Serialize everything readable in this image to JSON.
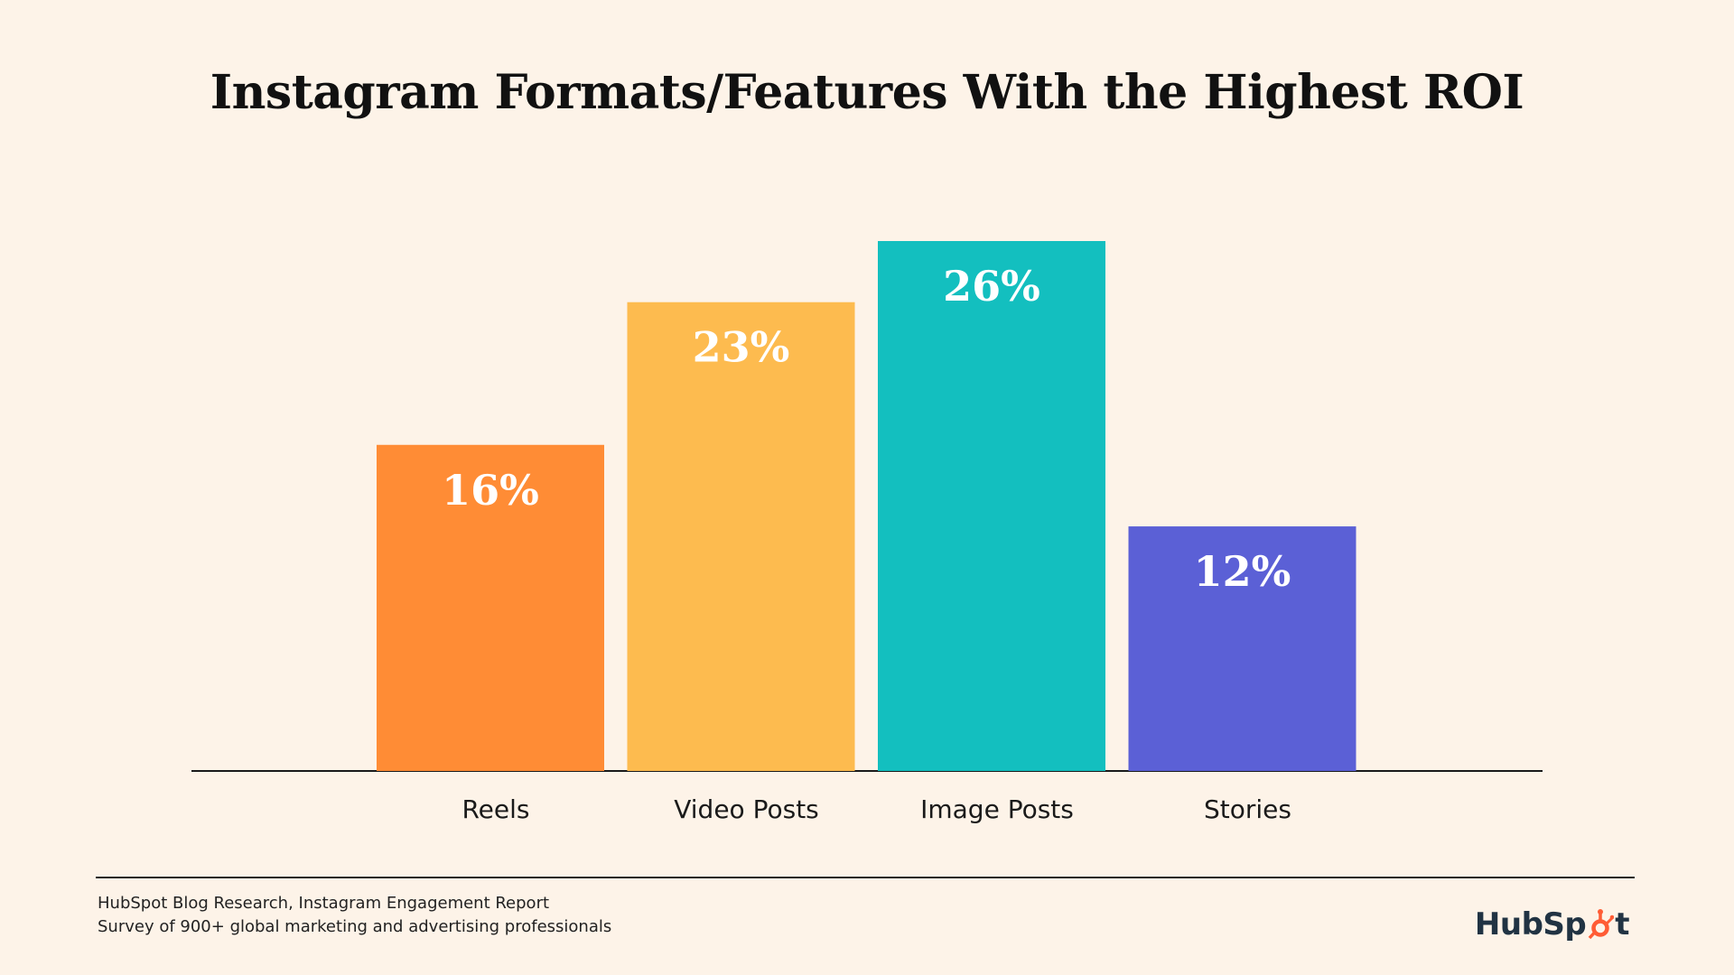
{
  "chart_data": {
    "type": "bar",
    "title": "Instagram Formats/Features With the Highest ROI",
    "categories": [
      "Reels",
      "Video Posts",
      "Image Posts",
      "Stories"
    ],
    "values": [
      16,
      23,
      26,
      12
    ],
    "value_labels": [
      "16%",
      "23%",
      "26%",
      "12%"
    ],
    "colors": [
      "#ff8c35",
      "#fdbb4f",
      "#13bfbf",
      "#5b60d6"
    ],
    "ylim": [
      0,
      26
    ],
    "grid": false,
    "legend": "none",
    "xlabel": "",
    "ylabel": ""
  },
  "footer": {
    "source_line_1": "HubSpot Blog Research, Instagram Engagement Report",
    "source_line_2": "Survey of 900+ global marketing and advertising professionals"
  },
  "brand": {
    "prefix": "HubSp",
    "suffix": "t",
    "icon": "hubspot-sprocket-icon",
    "accent_color": "#ff5c35"
  }
}
